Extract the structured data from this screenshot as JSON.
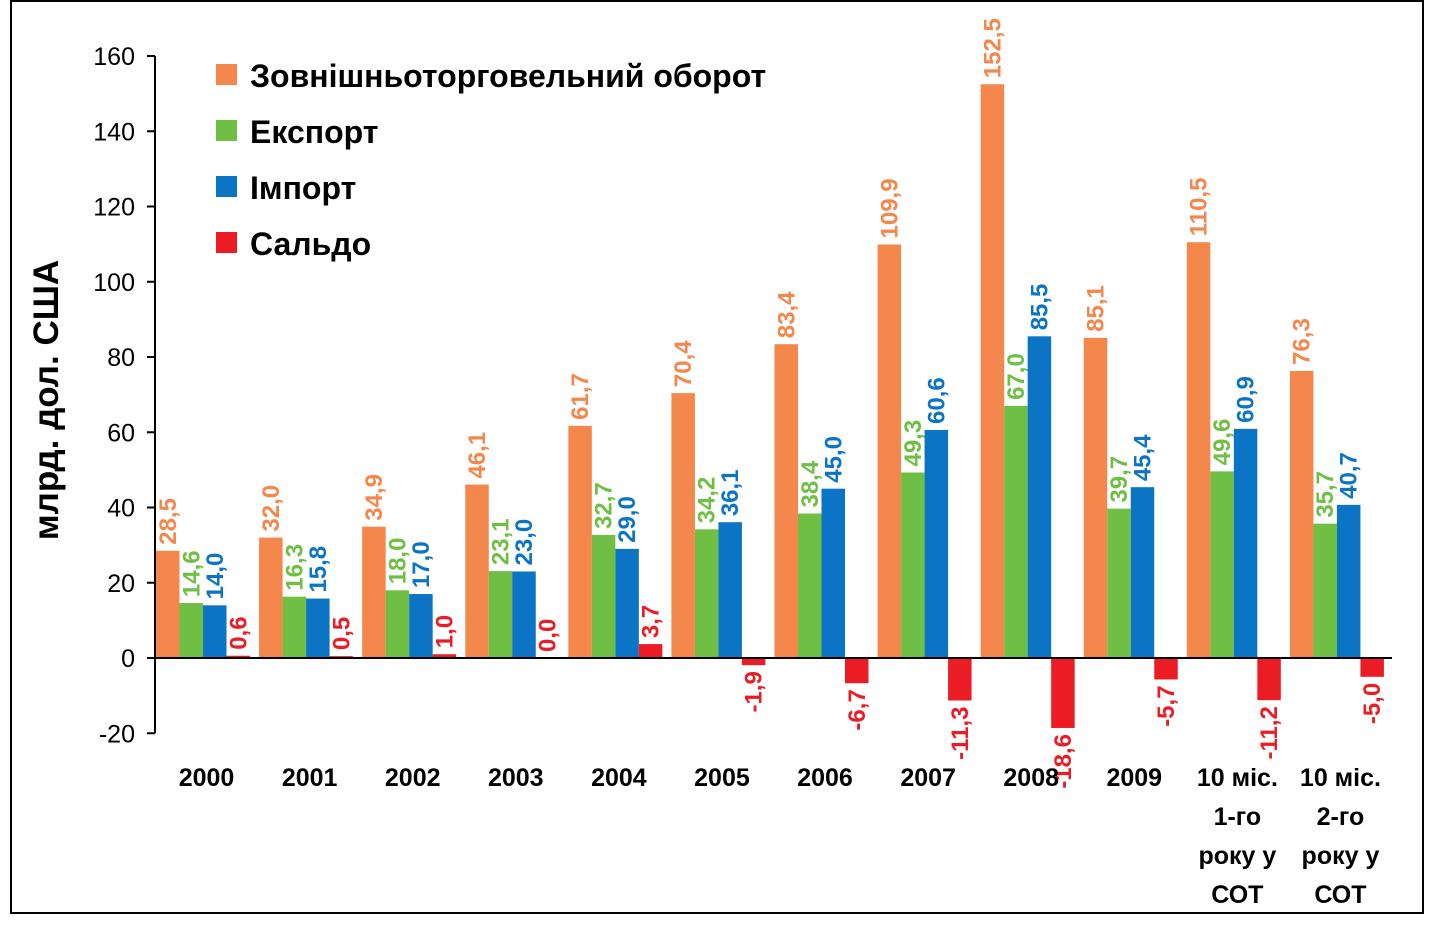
{
  "chart_data": {
    "type": "bar",
    "ylabel": "млрд. дол. США",
    "ylim": [
      -20,
      160
    ],
    "yticks": [
      -20,
      0,
      20,
      40,
      60,
      80,
      100,
      120,
      140,
      160
    ],
    "grid": false,
    "legend_position": "top-left",
    "categories": [
      [
        "2000"
      ],
      [
        "2001"
      ],
      [
        "2002"
      ],
      [
        "2003"
      ],
      [
        "2004"
      ],
      [
        "2005"
      ],
      [
        "2006"
      ],
      [
        "2007"
      ],
      [
        "2008"
      ],
      [
        "2009"
      ],
      [
        "10 міс.",
        "1-го",
        "року у",
        "СОТ"
      ],
      [
        "10 міс.",
        "2-го",
        "року у",
        "СОТ"
      ]
    ],
    "series": [
      {
        "name": "Зовнішньоторговельний оборот",
        "color": "#f4874b",
        "values": [
          28.5,
          32.0,
          34.9,
          46.1,
          61.7,
          70.4,
          83.4,
          109.9,
          152.5,
          85.1,
          110.5,
          76.3
        ],
        "labels": [
          "28,5",
          "32,0",
          "34,9",
          "46,1",
          "61,7",
          "70,4",
          "83,4",
          "109,9",
          "152,5",
          "85,1",
          "110,5",
          "76,3"
        ]
      },
      {
        "name": "Експорт",
        "color": "#6fbf44",
        "values": [
          14.6,
          16.3,
          18.0,
          23.1,
          32.7,
          34.2,
          38.4,
          49.3,
          67.0,
          39.7,
          49.6,
          35.7
        ],
        "labels": [
          "14,6",
          "16,3",
          "18,0",
          "23,1",
          "32,7",
          "34,2",
          "38,4",
          "49,3",
          "67,0",
          "39,7",
          "49,6",
          "35,7"
        ]
      },
      {
        "name": "Імпорт",
        "color": "#0b74c4",
        "values": [
          14.0,
          15.8,
          17.0,
          23.0,
          29.0,
          36.1,
          45.0,
          60.6,
          85.5,
          45.4,
          60.9,
          40.7
        ],
        "labels": [
          "14,0",
          "15,8",
          "17,0",
          "23,0",
          "29,0",
          "36,1",
          "45,0",
          "60,6",
          "85,5",
          "45,4",
          "60,9",
          "40,7"
        ]
      },
      {
        "name": "Сальдо",
        "color": "#ec1c24",
        "values": [
          0.6,
          0.5,
          1.0,
          0.0,
          3.7,
          -1.9,
          -6.7,
          -11.3,
          -18.6,
          -5.7,
          -11.2,
          -5.0
        ],
        "labels": [
          "0,6",
          "0,5",
          "1,0",
          "0,0",
          "3,7",
          "-1,9",
          "-6,7",
          "-11,3",
          "-18,6",
          "-5,7",
          "-11,2",
          "-5,0"
        ]
      }
    ]
  }
}
